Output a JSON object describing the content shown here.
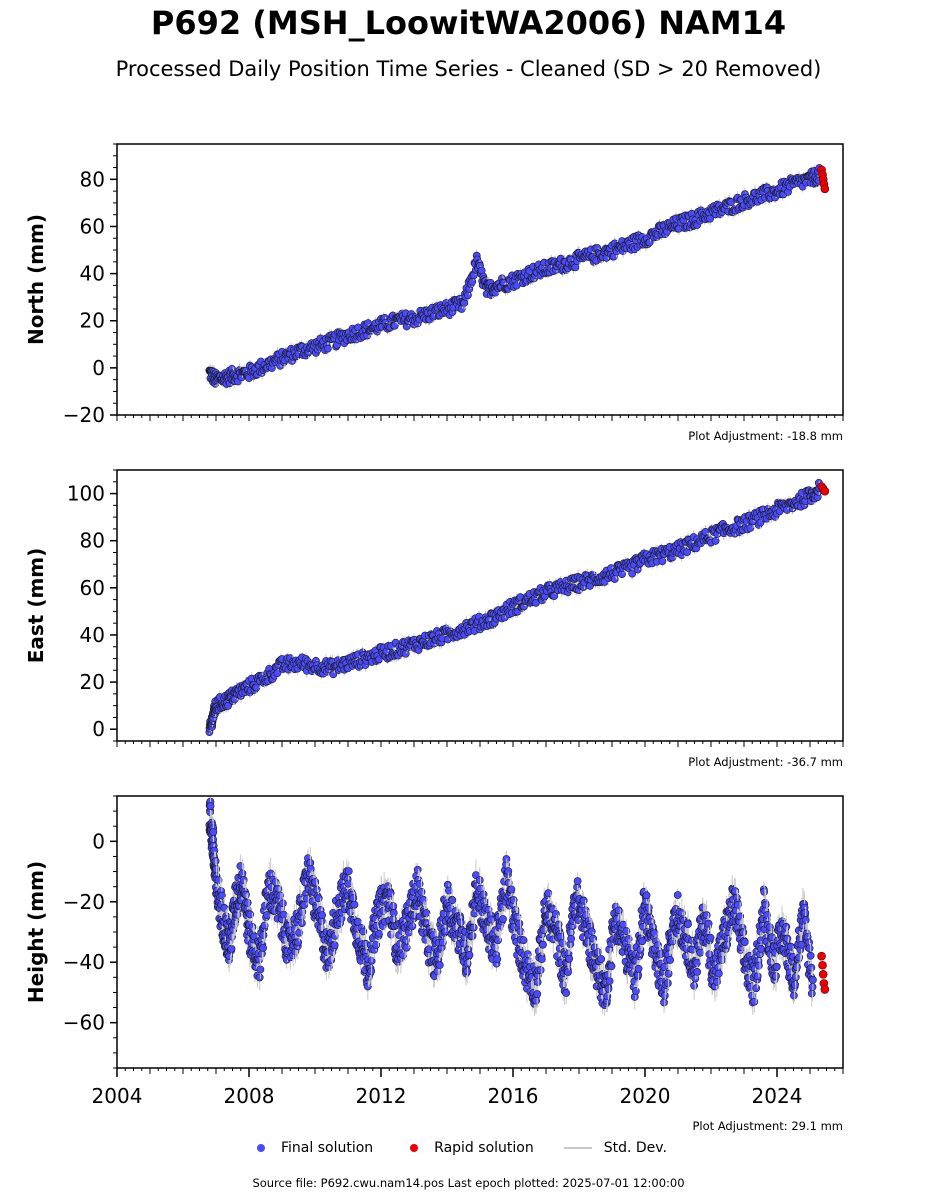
{
  "title": "P692 (MSH_LoowitWA2006) NAM14",
  "subtitle": "Processed Daily Position Time Series - Cleaned (SD > 20 Removed)",
  "legend": {
    "final": "Final solution",
    "rapid": "Rapid solution",
    "std": "Std. Dev."
  },
  "source": "Source file: P692.cwu.nam14.pos  Last epoch plotted: 2025-07-01 12:00:00",
  "colors": {
    "final": "#4a4aff",
    "final_edge": "#1a1a1a",
    "rapid": "#ee0000",
    "std": "#c8c8c8"
  },
  "chart_data": [
    {
      "type": "scatter",
      "ylabel": "North (mm)",
      "adjustment": "Plot Adjustment: -18.8 mm",
      "xlim": [
        2004,
        2026
      ],
      "ylim": [
        -20,
        95
      ],
      "yticks": [
        -20,
        0,
        20,
        40,
        60,
        80
      ],
      "ytick_labels": [
        "−20",
        "0",
        "20",
        "40",
        "60",
        "80"
      ],
      "series": [
        {
          "name": "Final solution",
          "x": [
            2006.8,
            2007.0,
            2007.3,
            2007.6,
            2008.0,
            2008.5,
            2009.0,
            2009.5,
            2010.0,
            2010.5,
            2011.0,
            2011.5,
            2012.0,
            2012.5,
            2013.0,
            2013.5,
            2014.0,
            2014.5,
            2014.9,
            2015.2,
            2015.5,
            2016.0,
            2016.5,
            2017.0,
            2017.5,
            2018.0,
            2018.5,
            2019.0,
            2019.5,
            2020.0,
            2020.5,
            2021.0,
            2021.5,
            2022.0,
            2022.5,
            2023.0,
            2023.5,
            2024.0,
            2024.5,
            2025.0,
            2025.3
          ],
          "y": [
            -2,
            -5,
            -4,
            -3,
            -2,
            1,
            4,
            7,
            9,
            11,
            14,
            16,
            18,
            20,
            21,
            23,
            25,
            27,
            45,
            33,
            35,
            37,
            40,
            42,
            44,
            46,
            48,
            50,
            52,
            55,
            58,
            61,
            63,
            66,
            68,
            71,
            73,
            75,
            78,
            80,
            82
          ]
        },
        {
          "name": "Rapid solution",
          "x": [
            2025.35,
            2025.38,
            2025.4,
            2025.42,
            2025.45
          ],
          "y": [
            84,
            82,
            80,
            78,
            76
          ]
        }
      ]
    },
    {
      "type": "scatter",
      "ylabel": "East (mm)",
      "adjustment": "Plot Adjustment: -36.7 mm",
      "xlim": [
        2004,
        2026
      ],
      "ylim": [
        -5,
        110
      ],
      "yticks": [
        0,
        20,
        40,
        60,
        80,
        100
      ],
      "ytick_labels": [
        "0",
        "20",
        "40",
        "60",
        "80",
        "100"
      ],
      "series": [
        {
          "name": "Final solution",
          "x": [
            2006.8,
            2006.9,
            2007.0,
            2007.3,
            2007.6,
            2008.0,
            2008.5,
            2009.0,
            2009.5,
            2010.0,
            2010.5,
            2011.0,
            2011.5,
            2012.0,
            2012.5,
            2013.0,
            2013.5,
            2014.0,
            2014.5,
            2015.0,
            2015.5,
            2016.0,
            2016.5,
            2017.0,
            2017.5,
            2018.0,
            2018.5,
            2019.0,
            2019.5,
            2020.0,
            2020.5,
            2021.0,
            2021.5,
            2022.0,
            2022.5,
            2023.0,
            2023.5,
            2024.0,
            2024.5,
            2025.0,
            2025.3
          ],
          "y": [
            -1,
            5,
            10,
            12,
            15,
            18,
            22,
            27,
            28,
            27,
            26,
            28,
            30,
            32,
            34,
            36,
            38,
            40,
            43,
            45,
            48,
            52,
            55,
            58,
            60,
            62,
            64,
            66,
            68,
            72,
            74,
            76,
            79,
            82,
            85,
            87,
            90,
            93,
            96,
            99,
            102
          ]
        },
        {
          "name": "Rapid solution",
          "x": [
            2025.35,
            2025.4,
            2025.45
          ],
          "y": [
            103,
            102,
            101
          ]
        }
      ]
    },
    {
      "type": "scatter",
      "ylabel": "Height (mm)",
      "adjustment": "Plot Adjustment: 29.1 mm",
      "xlim": [
        2004,
        2026
      ],
      "ylim": [
        -75,
        15
      ],
      "yticks": [
        -60,
        -40,
        -20,
        0
      ],
      "ytick_labels": [
        "−60",
        "−40",
        "−20",
        "0"
      ],
      "xticks": [
        2004,
        2008,
        2012,
        2016,
        2020,
        2024
      ],
      "xtick_labels": [
        "2004",
        "2008",
        "2012",
        "2016",
        "2020",
        "2024"
      ],
      "series": [
        {
          "name": "Final solution",
          "x": [
            2006.8,
            2006.9,
            2007.0,
            2007.2,
            2007.4,
            2007.6,
            2007.8,
            2008.0,
            2008.3,
            2008.6,
            2008.9,
            2009.2,
            2009.5,
            2009.8,
            2010.1,
            2010.4,
            2010.7,
            2011.0,
            2011.3,
            2011.6,
            2011.9,
            2012.2,
            2012.5,
            2012.8,
            2013.1,
            2013.4,
            2013.7,
            2014.0,
            2014.3,
            2014.6,
            2014.9,
            2015.2,
            2015.5,
            2015.8,
            2016.1,
            2016.4,
            2016.7,
            2017.0,
            2017.3,
            2017.6,
            2017.9,
            2018.2,
            2018.5,
            2018.8,
            2019.1,
            2019.4,
            2019.7,
            2020.0,
            2020.3,
            2020.6,
            2020.9,
            2021.2,
            2021.5,
            2021.8,
            2022.1,
            2022.4,
            2022.7,
            2023.0,
            2023.3,
            2023.6,
            2023.9,
            2024.2,
            2024.5,
            2024.8,
            2025.1
          ],
          "y": [
            10,
            0,
            -15,
            -25,
            -35,
            -20,
            -12,
            -30,
            -40,
            -15,
            -22,
            -35,
            -28,
            -10,
            -25,
            -38,
            -22,
            -15,
            -30,
            -42,
            -25,
            -18,
            -35,
            -28,
            -15,
            -32,
            -40,
            -20,
            -28,
            -38,
            -15,
            -28,
            -35,
            -12,
            -30,
            -42,
            -48,
            -22,
            -30,
            -45,
            -18,
            -28,
            -40,
            -50,
            -25,
            -35,
            -45,
            -20,
            -38,
            -48,
            -22,
            -30,
            -42,
            -25,
            -45,
            -32,
            -20,
            -38,
            -48,
            -22,
            -40,
            -30,
            -45,
            -25,
            -48
          ]
        },
        {
          "name": "Rapid solution",
          "x": [
            2025.35,
            2025.38,
            2025.4,
            2025.42,
            2025.45
          ],
          "y": [
            -38,
            -41,
            -44,
            -47,
            -49
          ]
        }
      ]
    }
  ]
}
